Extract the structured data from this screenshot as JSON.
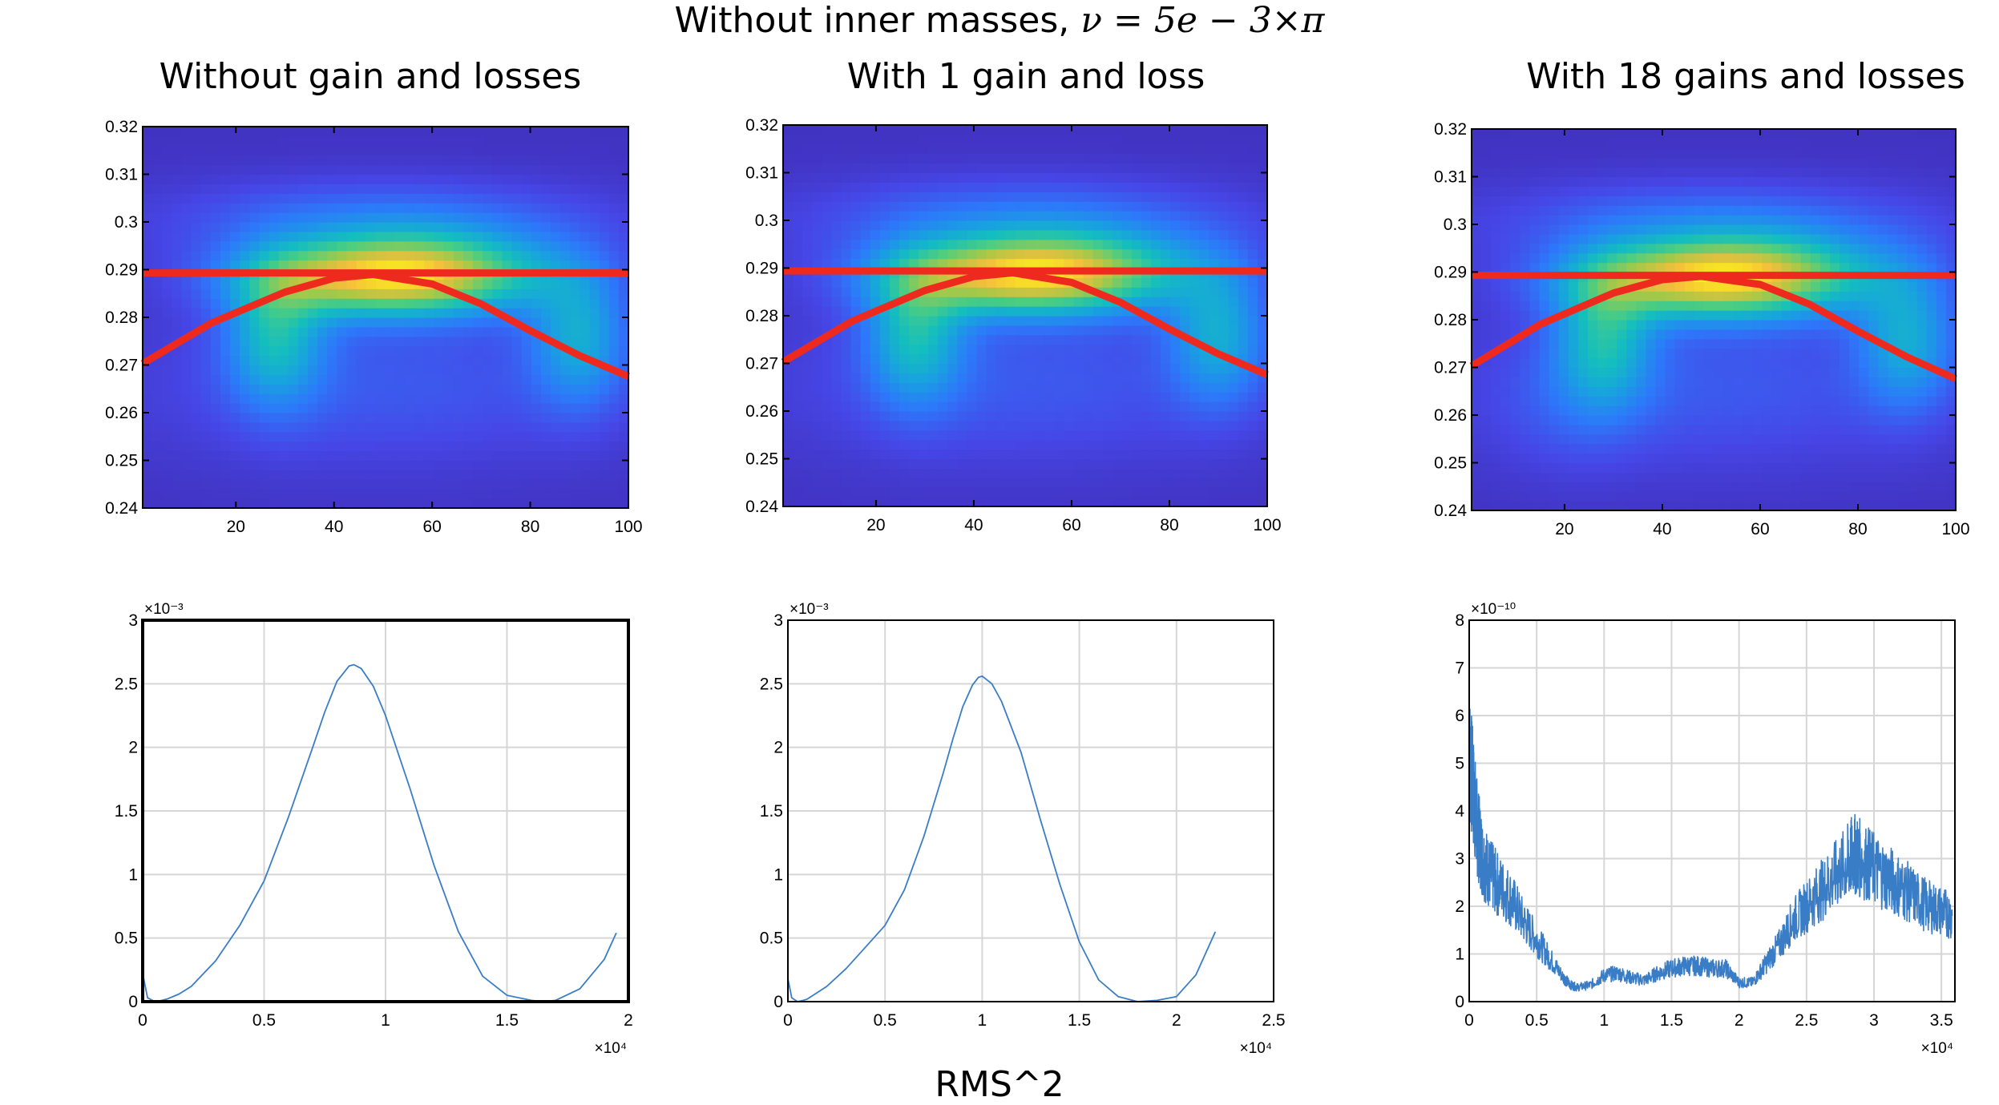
{
  "figure": {
    "title_prefix": "Without inner masses, ",
    "title_math": "ν = 5e − 3×π",
    "footer_label": "RMS^2"
  },
  "panels": [
    {
      "title": "Without gain and losses"
    },
    {
      "title": "With 1 gain and loss"
    },
    {
      "title": "With 18 gains and losses"
    }
  ],
  "colors": {
    "heatmap_low": "#3d2dc8",
    "heatmap_mid": "#24c3aa",
    "heatmap_high": "#fbfa2e",
    "overlay_line": "#ee2a1f",
    "trace": "#3a7dc7",
    "grid": "#d6d6d6"
  },
  "chart_data": [
    {
      "type": "heatmap",
      "title": "Without gain and losses",
      "x_ticks": [
        20,
        40,
        60,
        80,
        100
      ],
      "y_ticks": [
        0.24,
        0.25,
        0.26,
        0.27,
        0.28,
        0.29,
        0.3,
        0.31,
        0.32
      ],
      "xlim": [
        1,
        100
      ],
      "ylim": [
        0.24,
        0.32
      ],
      "colormap": "parula",
      "peak_center": [
        42,
        0.288
      ],
      "overlay": {
        "horizontal_line_y": 0.2893,
        "curve": {
          "x": [
            1,
            15,
            30,
            40,
            48,
            60,
            70,
            80,
            90,
            100
          ],
          "y": [
            0.2703,
            0.2788,
            0.2853,
            0.2882,
            0.289,
            0.287,
            0.2828,
            0.2772,
            0.272,
            0.2676
          ]
        }
      }
    },
    {
      "type": "heatmap",
      "title": "With 1 gain and loss",
      "x_ticks": [
        20,
        40,
        60,
        80,
        100
      ],
      "y_ticks": [
        0.24,
        0.25,
        0.26,
        0.27,
        0.28,
        0.29,
        0.3,
        0.31,
        0.32
      ],
      "xlim": [
        1,
        100
      ],
      "ylim": [
        0.24,
        0.32
      ],
      "colormap": "parula",
      "peak_center": [
        42,
        0.288
      ],
      "overlay": {
        "horizontal_line_y": 0.2894,
        "curve": {
          "x": [
            1,
            15,
            30,
            40,
            48,
            60,
            70,
            80,
            90,
            100
          ],
          "y": [
            0.2703,
            0.2788,
            0.2853,
            0.2882,
            0.289,
            0.287,
            0.2828,
            0.2772,
            0.272,
            0.2676
          ]
        }
      }
    },
    {
      "type": "heatmap",
      "title": "With 18 gains and losses",
      "x_ticks": [
        20,
        40,
        60,
        80,
        100
      ],
      "y_ticks": [
        0.24,
        0.25,
        0.26,
        0.27,
        0.28,
        0.29,
        0.3,
        0.31,
        0.32
      ],
      "xlim": [
        1,
        100
      ],
      "ylim": [
        0.24,
        0.32
      ],
      "colormap": "parula",
      "peak_center": [
        45,
        0.288
      ],
      "overlay": {
        "horizontal_line_y": 0.2893,
        "curve": {
          "x": [
            1,
            15,
            30,
            40,
            48,
            60,
            70,
            80,
            90,
            100
          ],
          "y": [
            0.2703,
            0.279,
            0.2856,
            0.2884,
            0.2891,
            0.2874,
            0.2833,
            0.2776,
            0.2722,
            0.2676
          ]
        }
      }
    },
    {
      "type": "line",
      "x": [
        0,
        200,
        500,
        800,
        1000,
        1500,
        2000,
        3000,
        4000,
        5000,
        6000,
        7000,
        7500,
        8000,
        8500,
        8700,
        9000,
        9500,
        10000,
        11000,
        12000,
        13000,
        14000,
        15000,
        16000,
        16500,
        17000,
        18000,
        19000,
        19500
      ],
      "y": [
        0.00022,
        3e-05,
        0.0,
        1e-05,
        2e-05,
        6e-05,
        0.00012,
        0.00032,
        0.0006,
        0.00095,
        0.00145,
        0.002,
        0.00228,
        0.00252,
        0.00264,
        0.00265,
        0.00262,
        0.00248,
        0.00225,
        0.00168,
        0.00107,
        0.00055,
        0.0002,
        5e-05,
        1e-05,
        0.0,
        1e-05,
        0.0001,
        0.00033,
        0.00054
      ],
      "xlim": [
        0,
        20000
      ],
      "ylim": [
        0,
        0.003
      ],
      "x_ticks": [
        "0",
        "0.5",
        "1",
        "1.5",
        "2"
      ],
      "y_ticks": [
        "0",
        "0.5",
        "1",
        "1.5",
        "2",
        "2.5",
        "3"
      ],
      "x_exponent": "×10⁴",
      "y_exponent": "×10⁻³",
      "grid": true
    },
    {
      "type": "line",
      "x": [
        0,
        200,
        500,
        800,
        1000,
        1500,
        2000,
        3000,
        4000,
        5000,
        6000,
        7000,
        8000,
        8500,
        9000,
        9500,
        9800,
        10000,
        10500,
        11000,
        12000,
        13000,
        14000,
        15000,
        16000,
        17000,
        18000,
        19000,
        20000,
        21000,
        22000
      ],
      "y": [
        0.00018,
        3e-05,
        0.0,
        1e-05,
        2e-05,
        7e-05,
        0.00012,
        0.00026,
        0.00043,
        0.0006,
        0.00088,
        0.0013,
        0.0018,
        0.00207,
        0.00232,
        0.00249,
        0.00255,
        0.00256,
        0.0025,
        0.00236,
        0.00196,
        0.00143,
        0.00092,
        0.00047,
        0.00017,
        4e-05,
        0.0,
        1e-05,
        4e-05,
        0.00021,
        0.00055
      ],
      "xlim": [
        0,
        25000
      ],
      "ylim": [
        0,
        0.003
      ],
      "x_ticks": [
        "0",
        "0.5",
        "1",
        "1.5",
        "2",
        "2.5"
      ],
      "y_ticks": [
        "0",
        "0.5",
        "1",
        "1.5",
        "2",
        "2.5",
        "3"
      ],
      "x_exponent": "×10⁴",
      "y_exponent": "×10⁻³",
      "grid": true
    },
    {
      "type": "line",
      "x": [
        0,
        300,
        600,
        1000,
        1500,
        2000,
        3000,
        4000,
        5000,
        6000,
        7000,
        7500,
        8000,
        9000,
        10000,
        11000,
        12000,
        13000,
        14000,
        15000,
        16000,
        17000,
        18000,
        19000,
        20000,
        21000,
        22000,
        23000,
        24000,
        25000,
        26000,
        27000,
        28000,
        28500,
        29000,
        30000,
        31000,
        32000,
        33000,
        34000,
        35000,
        35800
      ],
      "y": [
        5.2e-10,
        4.4e-10,
        3.6e-10,
        3e-10,
        2.7e-10,
        2.5e-10,
        2.2e-10,
        1.7e-10,
        1.3e-10,
        9e-11,
        5e-11,
        3.5e-11,
        3e-11,
        3.5e-11,
        5.5e-11,
        6e-11,
        5e-11,
        4.5e-11,
        6e-11,
        7e-11,
        7.5e-11,
        7.5e-11,
        7e-11,
        7e-11,
        4e-11,
        4e-11,
        8e-11,
        1.2e-10,
        1.7e-10,
        2e-10,
        2.3e-10,
        2.6e-10,
        2.9e-10,
        3.1e-10,
        3e-10,
        2.8e-10,
        2.6e-10,
        2.4e-10,
        2.2e-10,
        2e-10,
        1.9e-10,
        1.8e-10
      ],
      "xlim": [
        0,
        36000
      ],
      "ylim": [
        0,
        8e-10
      ],
      "x_ticks": [
        "0",
        "0.5",
        "1",
        "1.5",
        "2",
        "2.5",
        "3",
        "3.5"
      ],
      "y_ticks": [
        "0",
        "1",
        "2",
        "3",
        "4",
        "5",
        "6",
        "7",
        "8"
      ],
      "x_exponent": "×10⁴",
      "y_exponent": "×10⁻¹⁰",
      "grid": true,
      "noisy": true
    }
  ]
}
